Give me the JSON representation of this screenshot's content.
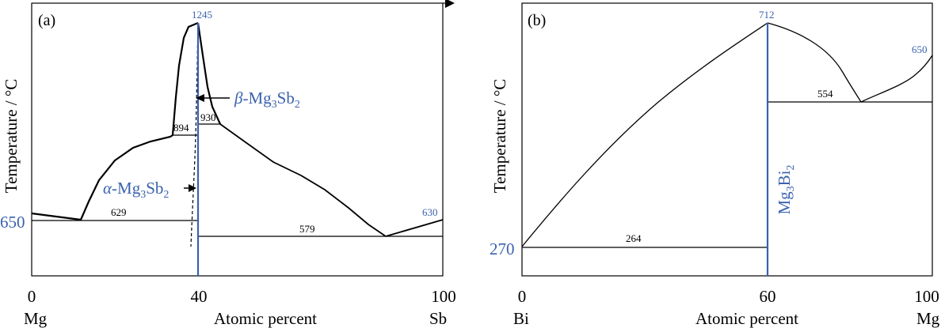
{
  "colors": {
    "line": "#000000",
    "compound": "#3a62ad"
  },
  "panel_a": {
    "label": "(a)",
    "ylabel": "Temperature / °C",
    "xlabel": "Atomic percent",
    "x_ticks": [
      "0",
      "40",
      "100"
    ],
    "x_elements": [
      "Mg",
      "Sb"
    ],
    "temps": {
      "max": "1245",
      "left_melt": "650",
      "right_melt": "630",
      "eutectic_left": "629",
      "eutectic_right": "579",
      "transition": "894",
      "peritectic": "930"
    },
    "phases": {
      "beta": {
        "prefix": "β",
        "rest": "-Mg",
        "sub1": "3",
        "mid": "Sb",
        "sub2": "2"
      },
      "alpha": {
        "prefix": "α",
        "rest": "-Mg",
        "sub1": "3",
        "mid": "Sb",
        "sub2": "2"
      }
    }
  },
  "panel_b": {
    "label": "(b)",
    "ylabel": "Temperature / °C",
    "xlabel": "Atomic percent",
    "x_ticks": [
      "0",
      "60",
      "100"
    ],
    "x_elements": [
      "Bi",
      "Mg"
    ],
    "temps": {
      "max": "712",
      "right_melt": "650",
      "left_melt": "270",
      "eutectic_left": "264",
      "eutectic_right": "554"
    },
    "compound": {
      "base": "Mg",
      "sub1": "3",
      "mid": "Bi",
      "sub2": "2"
    }
  }
}
